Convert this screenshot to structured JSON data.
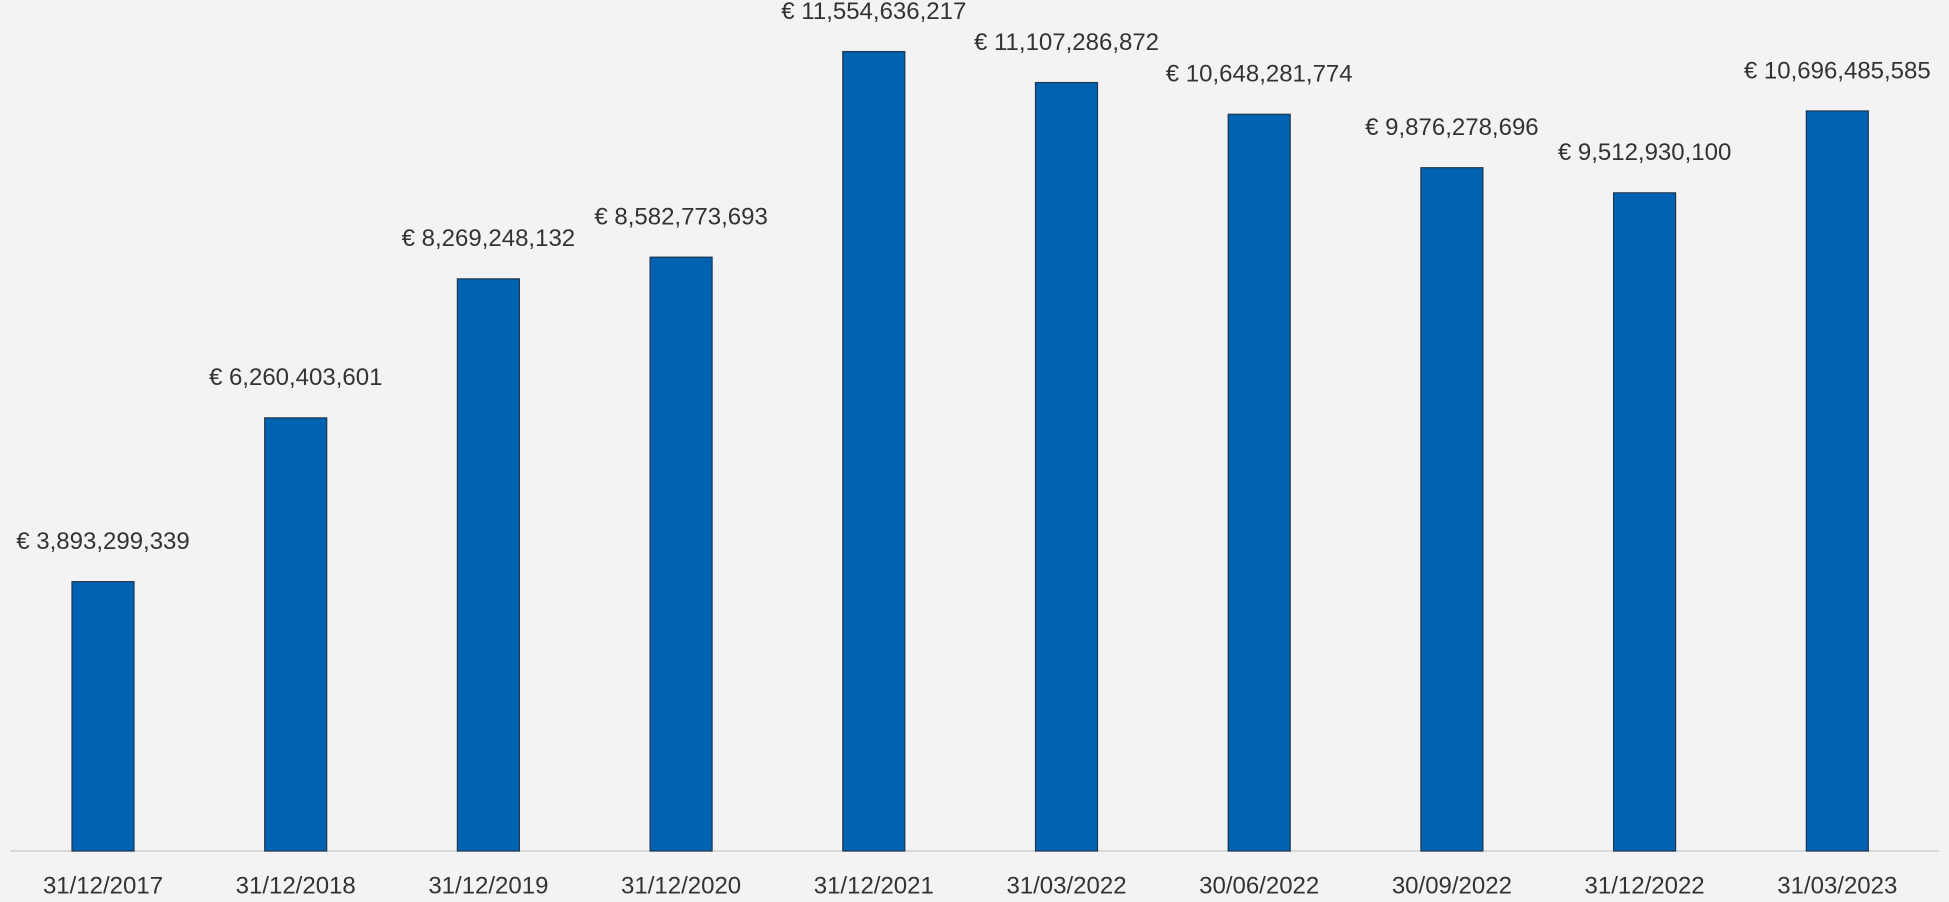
{
  "chart_data": {
    "type": "bar",
    "categories": [
      "31/12/2017",
      "31/12/2018",
      "31/12/2019",
      "31/12/2020",
      "31/12/2021",
      "31/03/2022",
      "30/06/2022",
      "30/09/2022",
      "31/12/2022",
      "31/03/2023"
    ],
    "values": [
      3893299339,
      6260403601,
      8269248132,
      8582773693,
      11554636217,
      11107286872,
      10648281774,
      9876278696,
      9512930100,
      10696485585
    ],
    "value_labels": [
      "€ 3,893,299,339",
      "€ 6,260,403,601",
      "€ 8,269,248,132",
      "€ 8,582,773,693",
      "€ 11,554,636,217",
      "€ 11,107,286,872",
      "€ 10,648,281,774",
      "€ 9,876,278,696",
      "€ 9,512,930,100",
      "€ 10,696,485,585"
    ],
    "color": "#0063b1",
    "ylim": [
      0,
      12300000000
    ]
  }
}
